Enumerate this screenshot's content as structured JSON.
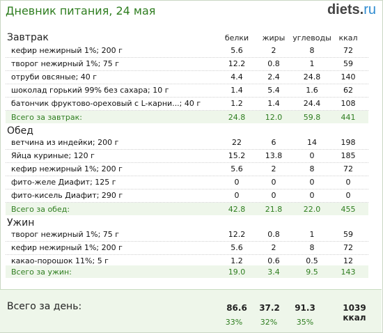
{
  "header": {
    "title": "Дневник питания, 24 мая",
    "logo_main": "diets",
    "logo_dot": ".",
    "logo_tld": "ru"
  },
  "columns": {
    "c1": "белки",
    "c2": "жиры",
    "c3": "углеводы",
    "c4": "ккал"
  },
  "sections": [
    {
      "name": "Завтрак",
      "items": [
        {
          "name": "кефир нежирный 1%; 200 г",
          "c1": "5.6",
          "c2": "2",
          "c3": "8",
          "c4": "72"
        },
        {
          "name": "творог нежирный 1%; 75 г",
          "c1": "12.2",
          "c2": "0.8",
          "c3": "1",
          "c4": "59"
        },
        {
          "name": "отруби овсяные; 40 г",
          "c1": "4.4",
          "c2": "2.4",
          "c3": "24.8",
          "c4": "140"
        },
        {
          "name": "шоколад горький 99% без сахара; 10 г",
          "c1": "1.4",
          "c2": "5.4",
          "c3": "1.6",
          "c4": "62"
        },
        {
          "name": "батончик фруктово-ореховый с L-карни...; 40 г",
          "c1": "1.2",
          "c2": "1.4",
          "c3": "24.4",
          "c4": "108"
        }
      ],
      "total": {
        "name": "Всего за завтрак:",
        "c1": "24.8",
        "c2": "12.0",
        "c3": "59.8",
        "c4": "441"
      }
    },
    {
      "name": "Обед",
      "items": [
        {
          "name": "ветчина из индейки; 200 г",
          "c1": "22",
          "c2": "6",
          "c3": "14",
          "c4": "198"
        },
        {
          "name": "Яйца куриные; 120 г",
          "c1": "15.2",
          "c2": "13.8",
          "c3": "0",
          "c4": "185"
        },
        {
          "name": "кефир нежирный 1%; 200 г",
          "c1": "5.6",
          "c2": "2",
          "c3": "8",
          "c4": "72"
        },
        {
          "name": "фито-желе Диафит; 125 г",
          "c1": "0",
          "c2": "0",
          "c3": "0",
          "c4": "0"
        },
        {
          "name": "фито-кисель Диафит; 290 г",
          "c1": "0",
          "c2": "0",
          "c3": "0",
          "c4": "0"
        }
      ],
      "total": {
        "name": "Всего за обед:",
        "c1": "42.8",
        "c2": "21.8",
        "c3": "22.0",
        "c4": "455"
      }
    },
    {
      "name": "Ужин",
      "items": [
        {
          "name": "творог нежирный 1%; 75 г",
          "c1": "12.2",
          "c2": "0.8",
          "c3": "1",
          "c4": "59"
        },
        {
          "name": "кефир нежирный 1%; 200 г",
          "c1": "5.6",
          "c2": "2",
          "c3": "8",
          "c4": "72"
        },
        {
          "name": "какао-порошок 11%; 5 г",
          "c1": "1.2",
          "c2": "0.6",
          "c3": "0.5",
          "c4": "12"
        }
      ],
      "total": {
        "name": "Всего за ужин:",
        "c1": "19.0",
        "c2": "3.4",
        "c3": "9.5",
        "c4": "143"
      }
    }
  ],
  "day": {
    "label": "Всего за день:",
    "c1": "86.6",
    "c2": "37.2",
    "c3": "91.3",
    "c4": "1039 ккал",
    "p1": "33%",
    "p2": "32%",
    "p3": "35%"
  },
  "colors": {
    "accent_green": "#2e7d1f",
    "total_bg": "#eef6ea",
    "logo_tld": "#2e8bd0"
  }
}
